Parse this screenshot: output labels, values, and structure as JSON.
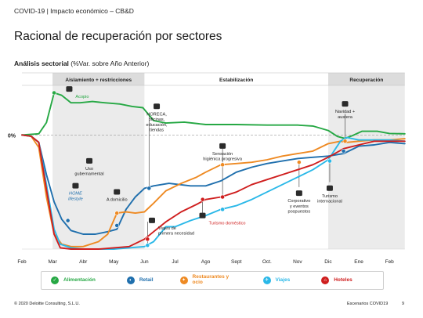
{
  "header": {
    "label": "COVID-19 | Impacto económico – CB&D",
    "title": "Racional de recuperación por sectores",
    "subtitle_bold": "Análisis sectorial",
    "subtitle_rest": " (%Var. sobre Año Anterior)"
  },
  "chart_data": {
    "type": "line",
    "x": [
      "Feb",
      "Mar",
      "Abr",
      "May",
      "Jun",
      "Jul",
      "Ago",
      "Sept",
      "Oct.",
      "Nov",
      "Dic",
      "Ene",
      "Feb"
    ],
    "y_tick_label": "0%",
    "ylim": [
      -46,
      20
    ],
    "phases": [
      {
        "label": "Aislamiento + restricciones",
        "start": 1.0,
        "end": 4.0
      },
      {
        "label": "Estabilización",
        "start": 4.0,
        "end": 10.0
      },
      {
        "label": "Recuperación",
        "start": 10.0,
        "end": 12.5
      }
    ],
    "series": [
      {
        "name": "Alimentación",
        "color": "#26a844",
        "points": [
          [
            0,
            0
          ],
          [
            0.55,
            0.5
          ],
          [
            0.8,
            5
          ],
          [
            1.05,
            17
          ],
          [
            1.3,
            16
          ],
          [
            1.6,
            13
          ],
          [
            1.9,
            13
          ],
          [
            2.3,
            13.5
          ],
          [
            2.7,
            13
          ],
          [
            3.2,
            12.5
          ],
          [
            3.6,
            11.5
          ],
          [
            3.95,
            11
          ],
          [
            4.3,
            5.8
          ],
          [
            4.7,
            4.8
          ],
          [
            5.3,
            5.2
          ],
          [
            6,
            4.2
          ],
          [
            7,
            4.2
          ],
          [
            8,
            4
          ],
          [
            9,
            4
          ],
          [
            9.5,
            3.6
          ],
          [
            10,
            1.8
          ],
          [
            10.3,
            -0.6
          ],
          [
            10.55,
            -1.4
          ],
          [
            10.8,
            -0.2
          ],
          [
            11.1,
            1.5
          ],
          [
            11.6,
            1.5
          ],
          [
            12,
            0.6
          ],
          [
            12.5,
            0.5
          ]
        ],
        "markers": [
          [
            1.05,
            17
          ]
        ]
      },
      {
        "name": "Retail",
        "color": "#1f6fad",
        "points": [
          [
            0,
            0
          ],
          [
            0.3,
            -0.5
          ],
          [
            0.55,
            -3
          ],
          [
            0.8,
            -16
          ],
          [
            1.05,
            -27
          ],
          [
            1.3,
            -34
          ],
          [
            1.6,
            -38.5
          ],
          [
            2,
            -40
          ],
          [
            2.4,
            -40
          ],
          [
            2.8,
            -39
          ],
          [
            3.1,
            -38
          ],
          [
            3.4,
            -30
          ],
          [
            3.7,
            -25
          ],
          [
            4,
            -21.5
          ],
          [
            4.3,
            -20.5
          ],
          [
            4.8,
            -19.5
          ],
          [
            5.5,
            -20.5
          ],
          [
            6,
            -20.5
          ],
          [
            6.5,
            -18.5
          ],
          [
            7,
            -15
          ],
          [
            7.5,
            -13
          ],
          [
            8,
            -11.5
          ],
          [
            8.5,
            -10.5
          ],
          [
            9,
            -9.5
          ],
          [
            9.5,
            -9
          ],
          [
            10,
            -8.5
          ],
          [
            10.5,
            -7.5
          ],
          [
            11,
            -4.5
          ],
          [
            11.5,
            -4
          ],
          [
            12,
            -3
          ],
          [
            12.5,
            -3.5
          ]
        ],
        "markers": [
          [
            1.5,
            -34.5
          ],
          [
            3.1,
            -36.5
          ],
          [
            4.15,
            -21.5
          ],
          [
            10.5,
            -6.5
          ]
        ]
      },
      {
        "name": "Restaurantes y ocio",
        "color": "#ee8a23",
        "points": [
          [
            0,
            0
          ],
          [
            0.3,
            -0.5
          ],
          [
            0.55,
            -5
          ],
          [
            0.8,
            -25
          ],
          [
            1.05,
            -40
          ],
          [
            1.3,
            -44
          ],
          [
            1.6,
            -45
          ],
          [
            2,
            -45
          ],
          [
            2.5,
            -43
          ],
          [
            2.8,
            -40
          ],
          [
            3.1,
            -31.5
          ],
          [
            3.4,
            -31
          ],
          [
            3.7,
            -31.5
          ],
          [
            4,
            -31
          ],
          [
            4.3,
            -27.5
          ],
          [
            4.7,
            -22.5
          ],
          [
            5.2,
            -19.5
          ],
          [
            5.7,
            -17
          ],
          [
            6,
            -15
          ],
          [
            6.5,
            -12
          ],
          [
            7,
            -11.5
          ],
          [
            7.5,
            -11
          ],
          [
            8,
            -10
          ],
          [
            8.5,
            -8.5
          ],
          [
            9,
            -7.5
          ],
          [
            9.5,
            -6.5
          ],
          [
            10,
            -3.5
          ],
          [
            10.4,
            -2.5
          ],
          [
            10.6,
            -3
          ],
          [
            11,
            -2.5
          ],
          [
            11.5,
            -2
          ],
          [
            12,
            -2
          ],
          [
            12.5,
            -1.5
          ]
        ],
        "markers": [
          [
            3.1,
            -31.5
          ],
          [
            6.55,
            -12
          ],
          [
            9.05,
            -11
          ],
          [
            10.55,
            -2.5
          ]
        ]
      },
      {
        "name": "Viajes",
        "color": "#2ab8e8",
        "points": [
          [
            0,
            0
          ],
          [
            0.3,
            -0.5
          ],
          [
            0.55,
            -3
          ],
          [
            0.8,
            -20
          ],
          [
            1.05,
            -38
          ],
          [
            1.25,
            -44
          ],
          [
            1.6,
            -45.5
          ],
          [
            2,
            -46
          ],
          [
            2.5,
            -46
          ],
          [
            3,
            -46
          ],
          [
            3.5,
            -45.5
          ],
          [
            4,
            -45
          ],
          [
            4.3,
            -43
          ],
          [
            4.7,
            -37
          ],
          [
            5,
            -37
          ],
          [
            5.5,
            -34.5
          ],
          [
            6,
            -32.5
          ],
          [
            6.5,
            -30
          ],
          [
            7,
            -28.5
          ],
          [
            7.5,
            -26
          ],
          [
            8,
            -23
          ],
          [
            8.5,
            -20
          ],
          [
            9,
            -17
          ],
          [
            9.5,
            -14
          ],
          [
            10,
            -10
          ],
          [
            10.4,
            -2.5
          ],
          [
            10.6,
            -1
          ],
          [
            11,
            -2
          ],
          [
            12,
            -2
          ],
          [
            12.5,
            -2.5
          ]
        ],
        "markers": [
          [
            4.1,
            -44.5
          ],
          [
            6.55,
            -30
          ],
          [
            10.05,
            -10.5
          ]
        ]
      },
      {
        "name": "Hoteles",
        "color": "#cf1e1e",
        "points": [
          [
            0,
            0
          ],
          [
            0.3,
            -0.5
          ],
          [
            0.55,
            -3
          ],
          [
            0.8,
            -22
          ],
          [
            1.05,
            -40
          ],
          [
            1.25,
            -45.5
          ],
          [
            1.6,
            -46
          ],
          [
            2,
            -46
          ],
          [
            2.5,
            -46
          ],
          [
            3,
            -45.5
          ],
          [
            3.5,
            -45
          ],
          [
            4,
            -42
          ],
          [
            4.3,
            -39
          ],
          [
            4.7,
            -35
          ],
          [
            5.2,
            -31
          ],
          [
            5.7,
            -28
          ],
          [
            6,
            -26
          ],
          [
            6.5,
            -25
          ],
          [
            7,
            -23
          ],
          [
            7.5,
            -20
          ],
          [
            8,
            -18
          ],
          [
            8.5,
            -16
          ],
          [
            9,
            -14
          ],
          [
            9.5,
            -12
          ],
          [
            10,
            -9
          ],
          [
            10.5,
            -5.5
          ],
          [
            11,
            -4
          ],
          [
            11.5,
            -2.5
          ],
          [
            12,
            -2.5
          ],
          [
            12.5,
            -2.5
          ]
        ],
        "markers": [
          [
            4.1,
            -42
          ],
          [
            5.9,
            -26
          ],
          [
            6.55,
            -25
          ]
        ]
      }
    ],
    "annotations": [
      {
        "text": [
          "Acopio"
        ],
        "color": "#26a844",
        "x": 1.75,
        "y": 16.5,
        "align": "start",
        "icon": "acopio-icon"
      },
      {
        "text": [
          "HORECA,",
          "oficinas,",
          "educación,",
          "tiendas"
        ],
        "color": "#222",
        "x": 4.4,
        "y": 9.5,
        "align": "middle",
        "icon": "horeca-icon"
      },
      {
        "text": [
          "Navidad +",
          "austera"
        ],
        "color": "#222",
        "x": 10.55,
        "y": 10.5,
        "align": "middle",
        "icon": "navidad-icon"
      },
      {
        "text": [
          "Uso",
          "gubernamental"
        ],
        "color": "#222",
        "x": 2.2,
        "y": -12.5,
        "align": "middle",
        "icon": "gobierno-icon"
      },
      {
        "text": [
          "Sensación",
          "higiénica progresiva"
        ],
        "color": "#222",
        "x": 6.55,
        "y": -6.5,
        "align": "middle",
        "icon": "higiene-icon"
      },
      {
        "text": [
          "HOME",
          "lifestyle"
        ],
        "color": "#1f6fad",
        "italic": true,
        "x": 1.75,
        "y": -22.5,
        "align": "middle",
        "icon": "home-icon"
      },
      {
        "text": [
          "A domicilio"
        ],
        "color": "#222",
        "x": 3.1,
        "y": -25,
        "align": "middle",
        "icon": "wifi-icon"
      },
      {
        "text": [
          "Corporativo",
          "y eventos",
          "pospuestos"
        ],
        "color": "#222",
        "x": 9.05,
        "y": -25.5,
        "align": "middle",
        "icon": "maletin-icon"
      },
      {
        "text": [
          "Turismo",
          "internacional"
        ],
        "color": "#222",
        "x": 10.05,
        "y": -23.5,
        "align": "middle",
        "icon": "globo-icon"
      },
      {
        "text": [
          "Turismo doméstico"
        ],
        "color": "#cf1e1e",
        "x": 6.1,
        "y": -34.5,
        "align": "start",
        "icon": "espana-icon"
      },
      {
        "text": [
          "Viajes de",
          "primera necesidad"
        ],
        "color": "#222",
        "x": 4.45,
        "y": -36.5,
        "align": "start",
        "icon": "avion-icon"
      }
    ],
    "leaders": [
      {
        "x": 4.15,
        "from": 8,
        "to": -21.5
      },
      {
        "x": 10.55,
        "from": 8.5,
        "to": -2.5
      },
      {
        "x": 6.55,
        "from": -5.5,
        "to": -25
      },
      {
        "x": 9.05,
        "from": -11,
        "to": -21
      },
      {
        "x": 10.05,
        "from": -10.5,
        "to": -19
      },
      {
        "x": 5.9,
        "from": -26,
        "to": -33
      },
      {
        "x": 4.1,
        "from": -44.5,
        "to": -35
      }
    ]
  },
  "legend": [
    {
      "label": "Alimentación",
      "color": "#26a844",
      "glyph": "✓"
    },
    {
      "label": "Retail",
      "color": "#1f6fad",
      "glyph": "◐"
    },
    {
      "label": "Restaurantes y ocio",
      "color": "#ee8a23",
      "glyph": "✦"
    },
    {
      "label": "Viajes",
      "color": "#2ab8e8",
      "glyph": "✈"
    },
    {
      "label": "Hoteles",
      "color": "#cf1e1e",
      "glyph": "⌂"
    }
  ],
  "footer": {
    "copyright": "© 2020 Deloitte Consulting, S.L.U.",
    "scenario": "Escenarios COVID19",
    "page": "9"
  }
}
